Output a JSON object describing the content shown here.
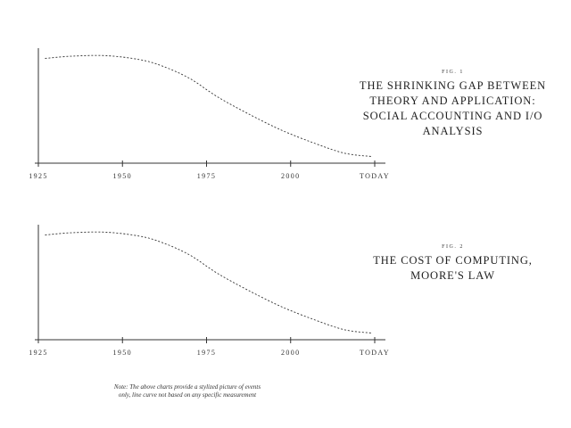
{
  "chart_data": [
    {
      "type": "line",
      "fig_label": "FIG. 1",
      "title": "THE SHRINKING GAP BETWEEN\nTHEORY AND APPLICATION:\nSOCIAL ACCOUNTING AND I/O\nANALYSIS",
      "categories": [
        "1925",
        "1950",
        "1975",
        "2000",
        "TODAY"
      ],
      "x": [
        1925,
        1950,
        1975,
        2000,
        2025
      ],
      "xlim": [
        1925,
        2025
      ],
      "ylim": [
        0,
        1
      ],
      "grid": false,
      "line_style": "dotted",
      "series": [
        {
          "x": [
            1927,
            1935,
            1945,
            1955,
            1962,
            1970,
            1978,
            1987,
            1997,
            2007,
            2016,
            2024
          ],
          "y": [
            0.94,
            0.96,
            0.965,
            0.93,
            0.87,
            0.76,
            0.6,
            0.45,
            0.3,
            0.18,
            0.09,
            0.06
          ]
        }
      ]
    },
    {
      "type": "line",
      "fig_label": "FIG. 2",
      "title": "THE COST OF COMPUTING,\nMOORE'S LAW",
      "categories": [
        "1925",
        "1950",
        "1975",
        "2000",
        "TODAY"
      ],
      "x": [
        1925,
        1950,
        1975,
        2000,
        2025
      ],
      "xlim": [
        1925,
        2025
      ],
      "ylim": [
        0,
        1
      ],
      "grid": false,
      "line_style": "dotted",
      "series": [
        {
          "x": [
            1927,
            1935,
            1945,
            1955,
            1962,
            1970,
            1978,
            1987,
            1997,
            2007,
            2016,
            2024
          ],
          "y": [
            0.94,
            0.96,
            0.965,
            0.93,
            0.87,
            0.76,
            0.6,
            0.45,
            0.3,
            0.18,
            0.09,
            0.06
          ]
        }
      ]
    }
  ],
  "note": "Note: The above charts provide a stylized picture of events\nonly, line curve not based on any specific measurement"
}
